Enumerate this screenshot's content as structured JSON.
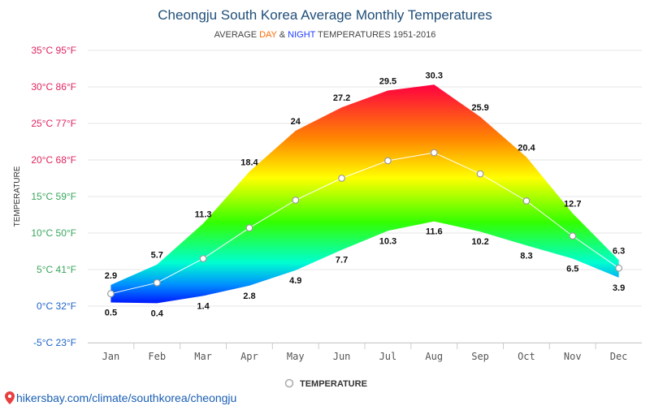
{
  "chart_data": {
    "type": "area",
    "title": "Cheongju South Korea Average Monthly Temperatures",
    "subtitle": {
      "prefix": "AVERAGE ",
      "day": "DAY",
      "amp": " & ",
      "night": "NIGHT",
      "suffix": " TEMPERATURES 1951-2016"
    },
    "ylabel": "TEMPERATURE",
    "categories": [
      "Jan",
      "Feb",
      "Mar",
      "Apr",
      "May",
      "Jun",
      "Jul",
      "Aug",
      "Sep",
      "Oct",
      "Nov",
      "Dec"
    ],
    "series": [
      {
        "name": "DAY",
        "values": [
          2.9,
          5.7,
          11.3,
          18.4,
          24,
          27.2,
          29.5,
          30.3,
          25.9,
          20.4,
          12.7,
          6.3
        ]
      },
      {
        "name": "NIGHT",
        "values": [
          0.5,
          0.4,
          1.4,
          2.8,
          4.9,
          7.7,
          10.3,
          11.6,
          10.2,
          8.3,
          6.5,
          3.9
        ]
      },
      {
        "name": "TEMPERATURE",
        "values": [
          1.7,
          3.2,
          6.5,
          10.7,
          14.5,
          17.5,
          19.9,
          21.0,
          18.1,
          14.4,
          9.6,
          5.2
        ]
      }
    ],
    "day_labels": [
      "2.9",
      "5.7",
      "11.3",
      "18.4",
      "24",
      "27.2",
      "29.5",
      "30.3",
      "25.9",
      "20.4",
      "12.7",
      "6.3"
    ],
    "night_labels": [
      "0.5",
      "0.4",
      "1.4",
      "2.8",
      "4.9",
      "7.7",
      "10.3",
      "11.6",
      "10.2",
      "8.3",
      "6.5",
      "3.9"
    ],
    "ylim": [
      -5,
      35
    ],
    "yticks": [
      {
        "value": 35,
        "label": "35°C 95°F",
        "color": "#e0245e"
      },
      {
        "value": 30,
        "label": "30°C 86°F",
        "color": "#e0245e"
      },
      {
        "value": 25,
        "label": "25°C 77°F",
        "color": "#e0245e"
      },
      {
        "value": 20,
        "label": "20°C 68°F",
        "color": "#e0245e"
      },
      {
        "value": 15,
        "label": "15°C 59°F",
        "color": "#3aa55d"
      },
      {
        "value": 10,
        "label": "10°C 50°F",
        "color": "#3aa55d"
      },
      {
        "value": 5,
        "label": "5°C 41°F",
        "color": "#3aa55d"
      },
      {
        "value": 0,
        "label": "0°C 32°F",
        "color": "#1e63c8"
      },
      {
        "value": -5,
        "label": "-5°C 23°F",
        "color": "#1e63c8"
      }
    ],
    "grid": true,
    "legend": {
      "placement": "bottom",
      "label": "TEMPERATURE"
    }
  },
  "source": "hikersbay.com/climate/southkorea/cheongju",
  "colors": {
    "day_accent": "#ff6a00",
    "night_accent": "#1e3cff",
    "title": "#1f4e79",
    "grid": "#e6e6e6",
    "avg_line": "#ffffff",
    "marker_fill": "#ffffff",
    "marker_stroke": "#999999"
  }
}
